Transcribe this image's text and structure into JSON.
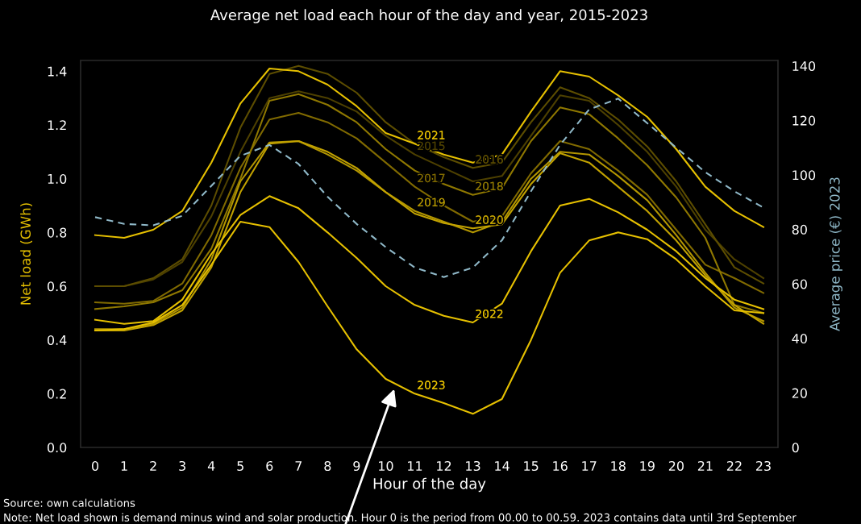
{
  "chart_data": {
    "type": "line",
    "title": "Average net load each hour of the day and year, 2015-2023",
    "xlabel": "Hour of the day",
    "ylabel": "Net load (GWh)",
    "y2label": "Average price (€) 2023",
    "x": [
      0,
      1,
      2,
      3,
      4,
      5,
      6,
      7,
      8,
      9,
      10,
      11,
      12,
      13,
      14,
      15,
      16,
      17,
      18,
      19,
      20,
      21,
      22,
      23
    ],
    "xlim": [
      -0.5,
      23.5
    ],
    "xticks": [
      0,
      1,
      2,
      3,
      4,
      5,
      6,
      7,
      8,
      9,
      10,
      11,
      12,
      13,
      14,
      15,
      16,
      17,
      18,
      19,
      20,
      21,
      22,
      23
    ],
    "ylim": [
      0,
      1.44
    ],
    "yticks": [
      {
        "value": 0,
        "label": "0.0"
      },
      {
        "value": 0.2,
        "label": "0.2"
      },
      {
        "value": 0.4,
        "label": "0.4"
      },
      {
        "value": 0.6,
        "label": "0.6"
      },
      {
        "value": 0.8,
        "label": "0.8"
      },
      {
        "value": 1.0,
        "label": "1.0"
      },
      {
        "value": 1.2,
        "label": "1.2"
      },
      {
        "value": 1.4,
        "label": "1.4"
      }
    ],
    "y2lim": [
      0,
      142
    ],
    "y2ticks": [
      0,
      20,
      40,
      60,
      80,
      100,
      120,
      140
    ],
    "grid": false,
    "legend": false,
    "marker": "none",
    "series": [
      {
        "name": "2015",
        "color": "#4d4000",
        "values": [
          0.6,
          0.6,
          0.625,
          0.69,
          0.86,
          1.1,
          1.3,
          1.325,
          1.3,
          1.25,
          1.16,
          1.09,
          1.04,
          0.99,
          1.01,
          1.16,
          1.31,
          1.29,
          1.2,
          1.1,
          0.97,
          0.81,
          0.7,
          0.63
        ]
      },
      {
        "name": "2016",
        "color": "#5c4d00",
        "values": [
          0.6,
          0.6,
          0.63,
          0.7,
          0.9,
          1.19,
          1.39,
          1.42,
          1.39,
          1.32,
          1.21,
          1.13,
          1.08,
          1.04,
          1.06,
          1.21,
          1.34,
          1.3,
          1.22,
          1.12,
          0.99,
          0.83,
          0.67,
          0.61
        ]
      },
      {
        "name": "2017",
        "color": "#806a00",
        "values": [
          0.54,
          0.535,
          0.545,
          0.61,
          0.79,
          1.04,
          1.22,
          1.245,
          1.21,
          1.15,
          1.06,
          0.97,
          0.9,
          0.84,
          0.86,
          1.02,
          1.14,
          1.11,
          1.03,
          0.94,
          0.81,
          0.68,
          0.63,
          0.575
        ]
      },
      {
        "name": "2018",
        "color": "#8f7800",
        "values": [
          0.515,
          0.525,
          0.54,
          0.585,
          0.74,
          1.0,
          1.29,
          1.315,
          1.275,
          1.21,
          1.11,
          1.03,
          0.98,
          0.94,
          0.965,
          1.14,
          1.265,
          1.24,
          1.15,
          1.05,
          0.93,
          0.78,
          0.53,
          0.5
        ]
      },
      {
        "name": "2019",
        "color": "#b39600",
        "values": [
          0.44,
          0.44,
          0.46,
          0.52,
          0.7,
          0.99,
          1.135,
          1.14,
          1.09,
          1.03,
          0.95,
          0.88,
          0.84,
          0.8,
          0.84,
          1.0,
          1.1,
          1.09,
          1.01,
          0.92,
          0.79,
          0.65,
          0.52,
          0.47
        ]
      },
      {
        "name": "2020",
        "color": "#c2a200",
        "values": [
          0.435,
          0.435,
          0.455,
          0.51,
          0.67,
          0.95,
          1.13,
          1.14,
          1.1,
          1.04,
          0.95,
          0.87,
          0.835,
          0.815,
          0.83,
          0.98,
          1.095,
          1.06,
          0.97,
          0.88,
          0.77,
          0.64,
          0.53,
          0.46
        ]
      },
      {
        "name": "2021",
        "color": "#e6c000",
        "values": [
          0.79,
          0.78,
          0.81,
          0.88,
          1.06,
          1.28,
          1.41,
          1.4,
          1.35,
          1.27,
          1.17,
          1.13,
          1.09,
          1.06,
          1.09,
          1.25,
          1.4,
          1.38,
          1.31,
          1.23,
          1.11,
          0.97,
          0.88,
          0.82
        ]
      },
      {
        "name": "2022",
        "color": "#e6c000",
        "values": [
          0.475,
          0.46,
          0.47,
          0.55,
          0.72,
          0.865,
          0.935,
          0.89,
          0.8,
          0.705,
          0.6,
          0.53,
          0.49,
          0.465,
          0.535,
          0.73,
          0.9,
          0.925,
          0.875,
          0.81,
          0.73,
          0.63,
          0.55,
          0.515
        ]
      },
      {
        "name": "2023",
        "color": "#e6c000",
        "values": [
          0.435,
          0.44,
          0.465,
          0.53,
          0.68,
          0.84,
          0.82,
          0.69,
          0.525,
          0.365,
          0.255,
          0.2,
          0.165,
          0.125,
          0.18,
          0.4,
          0.65,
          0.77,
          0.8,
          0.775,
          0.7,
          0.6,
          0.51,
          0.5
        ]
      },
      {
        "color": "#8fb8c8",
        "axis": "y2",
        "line_style": "dashed",
        "values": [
          84.5,
          82,
          81.5,
          85,
          96,
          107,
          111,
          104,
          92,
          82,
          73.5,
          66,
          62.5,
          66,
          76,
          94,
          111,
          124,
          128,
          119,
          110,
          101,
          94,
          88
        ]
      }
    ],
    "annotations": [
      "Source: own calculations",
      "Note: Net load shown is demand minus wind and solar production. Hour 0 is the period from 00.00 to 00.59. 2023 contains data until 3rd September"
    ]
  }
}
